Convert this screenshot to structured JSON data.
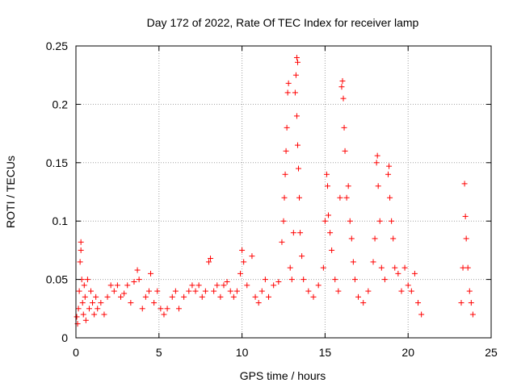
{
  "chart_data": {
    "type": "scatter",
    "title": "Day 172 of 2022, Rate Of TEC Index for receiver lamp",
    "xlabel": "GPS time / hours",
    "ylabel": "ROTI / TECUs",
    "xlim": [
      0,
      25
    ],
    "ylim": [
      0,
      0.25
    ],
    "x_ticks": [
      0,
      5,
      10,
      15,
      20,
      25
    ],
    "x_tick_labels": [
      "0",
      "5",
      "10",
      "15",
      "20",
      "25"
    ],
    "y_ticks": [
      0,
      0.05,
      0.1,
      0.15,
      0.2,
      0.25
    ],
    "y_tick_labels": [
      "0",
      "0.05",
      "0.1",
      "0.15",
      "0.2",
      "0.25"
    ],
    "grid": true,
    "marker": "plus",
    "color": "#ff0000",
    "series": [
      {
        "name": "ROTI",
        "points": [
          [
            0.05,
            0.018
          ],
          [
            0.1,
            0.012
          ],
          [
            0.15,
            0.025
          ],
          [
            0.2,
            0.04
          ],
          [
            0.25,
            0.065
          ],
          [
            0.3,
            0.082
          ],
          [
            0.3,
            0.075
          ],
          [
            0.35,
            0.05
          ],
          [
            0.4,
            0.03
          ],
          [
            0.45,
            0.02
          ],
          [
            0.5,
            0.045
          ],
          [
            0.55,
            0.035
          ],
          [
            0.6,
            0.015
          ],
          [
            0.7,
            0.05
          ],
          [
            0.8,
            0.025
          ],
          [
            0.9,
            0.04
          ],
          [
            1.0,
            0.03
          ],
          [
            1.1,
            0.02
          ],
          [
            1.2,
            0.035
          ],
          [
            1.3,
            0.025
          ],
          [
            1.5,
            0.03
          ],
          [
            1.7,
            0.02
          ],
          [
            1.9,
            0.035
          ],
          [
            2.1,
            0.045
          ],
          [
            2.3,
            0.04
          ],
          [
            2.5,
            0.045
          ],
          [
            2.7,
            0.035
          ],
          [
            2.9,
            0.038
          ],
          [
            3.1,
            0.045
          ],
          [
            3.3,
            0.03
          ],
          [
            3.5,
            0.048
          ],
          [
            3.7,
            0.058
          ],
          [
            3.8,
            0.05
          ],
          [
            4.0,
            0.025
          ],
          [
            4.2,
            0.035
          ],
          [
            4.4,
            0.04
          ],
          [
            4.5,
            0.055
          ],
          [
            4.7,
            0.03
          ],
          [
            4.9,
            0.04
          ],
          [
            5.1,
            0.025
          ],
          [
            5.3,
            0.02
          ],
          [
            5.5,
            0.025
          ],
          [
            5.8,
            0.035
          ],
          [
            6.0,
            0.04
          ],
          [
            6.2,
            0.025
          ],
          [
            6.5,
            0.035
          ],
          [
            6.8,
            0.04
          ],
          [
            7.0,
            0.045
          ],
          [
            7.2,
            0.04
          ],
          [
            7.4,
            0.045
          ],
          [
            7.6,
            0.035
          ],
          [
            7.8,
            0.04
          ],
          [
            8.0,
            0.065
          ],
          [
            8.1,
            0.068
          ],
          [
            8.3,
            0.04
          ],
          [
            8.5,
            0.045
          ],
          [
            8.7,
            0.035
          ],
          [
            8.9,
            0.045
          ],
          [
            9.1,
            0.048
          ],
          [
            9.3,
            0.04
          ],
          [
            9.5,
            0.035
          ],
          [
            9.7,
            0.04
          ],
          [
            9.9,
            0.055
          ],
          [
            10.0,
            0.075
          ],
          [
            10.1,
            0.065
          ],
          [
            10.3,
            0.045
          ],
          [
            10.6,
            0.07
          ],
          [
            10.8,
            0.035
          ],
          [
            11.0,
            0.03
          ],
          [
            11.2,
            0.04
          ],
          [
            11.4,
            0.05
          ],
          [
            11.6,
            0.035
          ],
          [
            11.9,
            0.045
          ],
          [
            12.2,
            0.048
          ],
          [
            12.4,
            0.082
          ],
          [
            12.5,
            0.1
          ],
          [
            12.55,
            0.12
          ],
          [
            12.6,
            0.14
          ],
          [
            12.65,
            0.16
          ],
          [
            12.7,
            0.18
          ],
          [
            12.75,
            0.21
          ],
          [
            12.8,
            0.218
          ],
          [
            12.9,
            0.06
          ],
          [
            13.0,
            0.05
          ],
          [
            13.1,
            0.09
          ],
          [
            13.2,
            0.21
          ],
          [
            13.25,
            0.225
          ],
          [
            13.3,
            0.24
          ],
          [
            13.35,
            0.236
          ],
          [
            13.3,
            0.19
          ],
          [
            13.35,
            0.165
          ],
          [
            13.4,
            0.145
          ],
          [
            13.45,
            0.12
          ],
          [
            13.5,
            0.09
          ],
          [
            13.6,
            0.07
          ],
          [
            13.7,
            0.05
          ],
          [
            14.0,
            0.04
          ],
          [
            14.3,
            0.035
          ],
          [
            14.6,
            0.045
          ],
          [
            14.9,
            0.06
          ],
          [
            15.0,
            0.1
          ],
          [
            15.1,
            0.14
          ],
          [
            15.15,
            0.13
          ],
          [
            15.2,
            0.105
          ],
          [
            15.3,
            0.09
          ],
          [
            15.4,
            0.075
          ],
          [
            15.6,
            0.05
          ],
          [
            15.8,
            0.04
          ],
          [
            15.9,
            0.12
          ],
          [
            16.0,
            0.215
          ],
          [
            16.05,
            0.22
          ],
          [
            16.1,
            0.205
          ],
          [
            16.15,
            0.18
          ],
          [
            16.2,
            0.16
          ],
          [
            16.3,
            0.12
          ],
          [
            16.4,
            0.13
          ],
          [
            16.5,
            0.1
          ],
          [
            16.6,
            0.085
          ],
          [
            16.7,
            0.065
          ],
          [
            16.8,
            0.05
          ],
          [
            17.0,
            0.035
          ],
          [
            17.3,
            0.03
          ],
          [
            17.6,
            0.04
          ],
          [
            17.9,
            0.065
          ],
          [
            18.0,
            0.085
          ],
          [
            18.1,
            0.15
          ],
          [
            18.15,
            0.156
          ],
          [
            18.2,
            0.13
          ],
          [
            18.3,
            0.1
          ],
          [
            18.4,
            0.06
          ],
          [
            18.6,
            0.05
          ],
          [
            18.8,
            0.14
          ],
          [
            18.85,
            0.147
          ],
          [
            18.9,
            0.12
          ],
          [
            19.0,
            0.1
          ],
          [
            19.1,
            0.085
          ],
          [
            19.2,
            0.06
          ],
          [
            19.4,
            0.055
          ],
          [
            19.6,
            0.04
          ],
          [
            19.8,
            0.06
          ],
          [
            20.0,
            0.045
          ],
          [
            20.2,
            0.04
          ],
          [
            20.4,
            0.055
          ],
          [
            20.6,
            0.03
          ],
          [
            20.8,
            0.02
          ],
          [
            23.2,
            0.03
          ],
          [
            23.3,
            0.06
          ],
          [
            23.4,
            0.132
          ],
          [
            23.45,
            0.104
          ],
          [
            23.5,
            0.085
          ],
          [
            23.6,
            0.06
          ],
          [
            23.7,
            0.04
          ],
          [
            23.8,
            0.03
          ],
          [
            23.9,
            0.02
          ]
        ]
      }
    ]
  }
}
